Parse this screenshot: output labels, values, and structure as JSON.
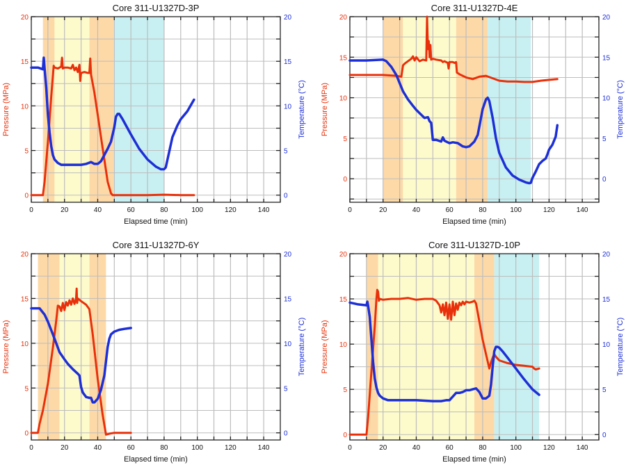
{
  "colors": {
    "pressure": "#e8300a",
    "temperature": "#1d2fd6",
    "band_orange": "#fdd9a8",
    "band_yellow": "#fdfbcc",
    "band_cyan": "#c8f0f2",
    "grid": "#bdbdbd"
  },
  "chart_data": [
    {
      "type": "line",
      "title": "Core 311-U1327D-3P",
      "xlabel": "Elapsed time (min)",
      "ylabel_left": "Pressure (MPa)",
      "ylabel_right": "Temperature (°C)",
      "xlim": [
        0,
        150
      ],
      "ylim": [
        -0.8,
        20
      ],
      "x_ticks": [
        "0",
        "20",
        "40",
        "60",
        "80",
        "100",
        "120",
        "140"
      ],
      "y_ticks": [
        "0",
        "5",
        "10",
        "15",
        "20"
      ],
      "bands": [
        {
          "color": "orange",
          "from": 7,
          "to": 14
        },
        {
          "color": "yellow",
          "from": 14,
          "to": 35
        },
        {
          "color": "orange",
          "from": 35,
          "to": 49.5
        },
        {
          "color": "cyan",
          "from": 49.5,
          "to": 80
        }
      ],
      "series": [
        {
          "name": "Pressure",
          "axis": "left",
          "x": [
            0,
            7,
            8,
            10,
            12,
            13.5,
            14,
            16,
            18,
            18.5,
            19,
            20,
            22,
            24,
            25,
            26,
            27,
            28,
            29,
            29.5,
            30,
            32,
            34,
            35,
            35.5,
            36,
            38,
            40,
            42,
            44,
            46,
            48,
            49,
            50,
            60,
            70,
            80,
            90,
            98
          ],
          "y": [
            0,
            0,
            1.5,
            6,
            11,
            14.5,
            14.3,
            14.2,
            14.4,
            15.4,
            14.2,
            14.3,
            14.3,
            14.2,
            14.6,
            14.0,
            14.3,
            13.8,
            14.6,
            12.8,
            13.7,
            13.8,
            13.7,
            13.7,
            15.3,
            13.5,
            11.5,
            9,
            6.5,
            4,
            1.5,
            0.2,
            0,
            0,
            0,
            0,
            0.05,
            0,
            0
          ]
        },
        {
          "name": "Temperature",
          "axis": "right",
          "x": [
            0,
            4,
            7,
            7.5,
            8,
            9,
            10,
            11,
            12,
            13,
            14,
            16,
            18,
            20,
            25,
            30,
            33,
            36,
            38,
            40,
            42,
            44,
            46,
            48,
            50,
            51,
            52,
            53,
            55,
            60,
            65,
            70,
            75,
            78,
            80,
            81,
            83,
            85,
            88,
            90,
            94,
            98
          ],
          "y": [
            14.3,
            14.3,
            14.1,
            15.4,
            14.2,
            12,
            9,
            7,
            5.5,
            4.5,
            4,
            3.6,
            3.4,
            3.4,
            3.4,
            3.4,
            3.5,
            3.7,
            3.5,
            3.5,
            3.8,
            4.5,
            5.2,
            6,
            7.6,
            8.8,
            9.1,
            9.1,
            8.5,
            6.8,
            5.2,
            4,
            3.2,
            2.9,
            2.9,
            3.1,
            4.8,
            6.5,
            7.8,
            8.5,
            9.4,
            10.7
          ]
        }
      ]
    },
    {
      "type": "line",
      "title": "Core 311-U1327D-4E",
      "xlabel": "Elapsed time (min)",
      "ylabel_left": "Pressure (MPa)",
      "ylabel_right": "Temperature (°C)",
      "xlim": [
        0,
        150
      ],
      "ylim": [
        -2.9,
        20
      ],
      "x_ticks": [
        "0",
        "20",
        "40",
        "60",
        "80",
        "100",
        "120",
        "140"
      ],
      "y_ticks": [
        "0",
        "5",
        "10",
        "15",
        "20"
      ],
      "bands": [
        {
          "color": "orange",
          "from": 20,
          "to": 32
        },
        {
          "color": "yellow",
          "from": 32,
          "to": 64
        },
        {
          "color": "orange",
          "from": 64,
          "to": 83
        },
        {
          "color": "cyan",
          "from": 83,
          "to": 109
        }
      ],
      "series": [
        {
          "name": "Pressure",
          "axis": "left",
          "x": [
            0,
            10,
            20,
            28,
            31,
            32,
            33,
            35,
            37,
            38,
            39,
            40,
            42,
            44,
            46,
            46.5,
            47,
            47.5,
            48,
            48.5,
            49,
            50,
            52,
            55,
            56,
            57,
            59,
            59.5,
            60,
            62,
            63,
            64,
            64.5,
            66,
            70,
            74,
            78,
            82,
            86,
            90,
            95,
            100,
            105,
            110,
            115,
            120,
            125
          ],
          "y": [
            12.8,
            12.8,
            12.8,
            12.7,
            12.6,
            14,
            14.2,
            14.5,
            14.8,
            15.1,
            14.6,
            15,
            14.5,
            14.7,
            14.6,
            20,
            16,
            17,
            15,
            16.5,
            14.7,
            14.8,
            14.7,
            14.6,
            14.4,
            14.5,
            14.3,
            13.6,
            14.4,
            14.4,
            14.3,
            14.4,
            13.1,
            12.9,
            12.5,
            12.3,
            12.6,
            12.7,
            12.4,
            12.1,
            12.0,
            12.0,
            11.95,
            11.95,
            12.1,
            12.2,
            12.3
          ]
        },
        {
          "name": "Temperature",
          "axis": "right",
          "x": [
            0,
            10,
            20,
            22,
            25,
            28,
            30,
            32,
            35,
            38,
            40,
            42,
            45,
            47,
            48,
            49,
            50,
            52,
            55,
            56,
            57,
            60,
            62,
            65,
            68,
            70,
            72,
            75,
            77,
            79,
            80,
            82,
            83,
            84,
            86,
            88,
            90,
            94,
            98,
            102,
            106,
            108,
            109,
            110,
            112,
            114,
            116,
            118,
            119,
            120,
            122,
            124,
            125
          ],
          "y": [
            14.6,
            14.6,
            14.7,
            14.5,
            13.8,
            12.8,
            11.8,
            10.8,
            9.8,
            9,
            8.5,
            8.1,
            7.5,
            7.6,
            7.1,
            6.9,
            4.8,
            4.8,
            4.6,
            5.1,
            4.7,
            4.4,
            4.5,
            4.4,
            4.0,
            3.9,
            4.0,
            4.6,
            5.4,
            7.5,
            8.6,
            9.8,
            10.0,
            9.6,
            7.5,
            5,
            3.2,
            1.4,
            0.4,
            -0.1,
            -0.45,
            -0.55,
            -0.5,
            0.1,
            0.9,
            1.8,
            2.2,
            2.5,
            3.0,
            3.6,
            4.2,
            5.2,
            6.6
          ]
        }
      ]
    },
    {
      "type": "line",
      "title": "Core 311-U1327D-6Y",
      "xlabel": "Elapsed time (min)",
      "ylabel_left": "Pressure (MPa)",
      "ylabel_right": "Temperature (°C)",
      "xlim": [
        0,
        150
      ],
      "ylim": [
        -0.8,
        20
      ],
      "x_ticks": [
        "0",
        "20",
        "40",
        "60",
        "80",
        "100",
        "120",
        "140"
      ],
      "y_ticks": [
        "0",
        "5",
        "10",
        "15",
        "20"
      ],
      "bands": [
        {
          "color": "orange",
          "from": 4,
          "to": 17
        },
        {
          "color": "yellow",
          "from": 17,
          "to": 35
        },
        {
          "color": "orange",
          "from": 35,
          "to": 45
        }
      ],
      "series": [
        {
          "name": "Pressure",
          "axis": "left",
          "x": [
            0,
            4,
            5,
            7,
            10,
            13,
            15,
            16,
            17,
            18,
            19,
            20,
            21,
            22,
            23,
            24,
            25,
            26,
            27,
            27.3,
            27.6,
            28,
            30,
            33,
            35,
            37,
            40,
            43,
            45,
            47,
            50,
            60
          ],
          "y": [
            0,
            0,
            1,
            2.5,
            5.5,
            9.5,
            12.5,
            14.2,
            14.1,
            13.6,
            14.5,
            13.7,
            14.6,
            14.2,
            14.8,
            14.3,
            15,
            14.4,
            15,
            16.1,
            14.5,
            15,
            14.7,
            14.3,
            13.8,
            11,
            6,
            2,
            -0.2,
            -0.1,
            0,
            0
          ]
        },
        {
          "name": "Temperature",
          "axis": "right",
          "x": [
            0,
            4,
            5,
            8,
            10,
            13,
            15,
            17,
            20,
            22,
            25,
            28,
            29,
            30,
            31,
            33,
            35,
            36,
            37,
            38,
            40,
            42,
            44,
            45,
            46,
            47,
            48,
            50,
            53,
            56,
            60
          ],
          "y": [
            13.9,
            13.9,
            13.9,
            13.2,
            12.4,
            11,
            10,
            9,
            8.2,
            7.7,
            7.1,
            6.6,
            6.4,
            5.1,
            4.5,
            4,
            3.9,
            3.9,
            3.4,
            3.4,
            3.8,
            4.8,
            6.4,
            8,
            9.6,
            10.5,
            11,
            11.3,
            11.5,
            11.6,
            11.7
          ]
        }
      ]
    },
    {
      "type": "line",
      "title": "Core 311-U1327D-10P",
      "xlabel": "Elapsed time (min)",
      "ylabel_left": "Pressure (MPa)",
      "ylabel_right": "Temperature (°C)",
      "xlim": [
        0,
        150
      ],
      "ylim": [
        -0.6,
        20
      ],
      "x_ticks": [
        "0",
        "20",
        "40",
        "60",
        "80",
        "100",
        "120",
        "140"
      ],
      "y_ticks": [
        "0",
        "5",
        "10",
        "15",
        "20"
      ],
      "bands": [
        {
          "color": "orange",
          "from": 10,
          "to": 17
        },
        {
          "color": "yellow",
          "from": 17,
          "to": 75
        },
        {
          "color": "orange",
          "from": 75,
          "to": 87
        },
        {
          "color": "cyan",
          "from": 87,
          "to": 114
        }
      ],
      "series": [
        {
          "name": "Pressure",
          "axis": "left",
          "x": [
            0,
            10,
            11,
            13,
            15,
            16,
            16.5,
            17,
            17.5,
            18,
            20,
            25,
            30,
            35,
            40,
            45,
            50,
            52,
            54,
            55,
            56,
            57,
            58,
            59,
            60,
            61,
            62,
            63,
            64,
            65,
            66,
            67,
            68,
            69,
            70,
            72,
            74,
            75,
            76,
            78,
            80,
            82,
            84,
            85,
            86,
            87,
            88,
            90,
            95,
            100,
            105,
            110,
            111,
            112,
            114
          ],
          "y": [
            0,
            0,
            2,
            7,
            12,
            15,
            16,
            15.8,
            14.8,
            15,
            14.9,
            15,
            15,
            15.1,
            14.9,
            15,
            15,
            14.8,
            14.3,
            13.5,
            14.4,
            13.2,
            14.6,
            12.8,
            14.4,
            12.7,
            14.7,
            13.2,
            14.5,
            13.8,
            14.6,
            14.3,
            14.7,
            14.4,
            14.7,
            14.6,
            14.7,
            14.8,
            14.5,
            12.5,
            10.5,
            8.9,
            7.3,
            8,
            8.5,
            8.9,
            8.6,
            8.2,
            7.9,
            7.7,
            7.6,
            7.5,
            7.3,
            7.2,
            7.3
          ]
        },
        {
          "name": "Temperature",
          "axis": "right",
          "x": [
            0,
            5,
            10,
            10.5,
            11,
            12,
            13,
            14,
            15,
            16,
            17,
            18,
            20,
            23,
            26,
            30,
            40,
            50,
            55,
            58,
            60,
            62,
            64,
            66,
            68,
            70,
            72,
            74,
            76,
            78,
            80,
            82,
            84,
            85,
            86,
            87,
            88,
            89,
            90,
            92,
            95,
            100,
            105,
            110,
            114
          ],
          "y": [
            14.6,
            14.4,
            14.3,
            14.7,
            14.2,
            13,
            10.5,
            8,
            6.2,
            5.2,
            4.6,
            4.3,
            4.0,
            3.8,
            3.8,
            3.8,
            3.8,
            3.7,
            3.7,
            3.8,
            3.8,
            4.2,
            4.6,
            4.6,
            4.7,
            4.9,
            4.9,
            5.0,
            5.1,
            4.7,
            4.0,
            4.0,
            4.3,
            5.5,
            7.5,
            9.2,
            9.7,
            9.7,
            9.6,
            9.2,
            8.5,
            7.3,
            6.1,
            5.0,
            4.4
          ]
        }
      ]
    }
  ]
}
